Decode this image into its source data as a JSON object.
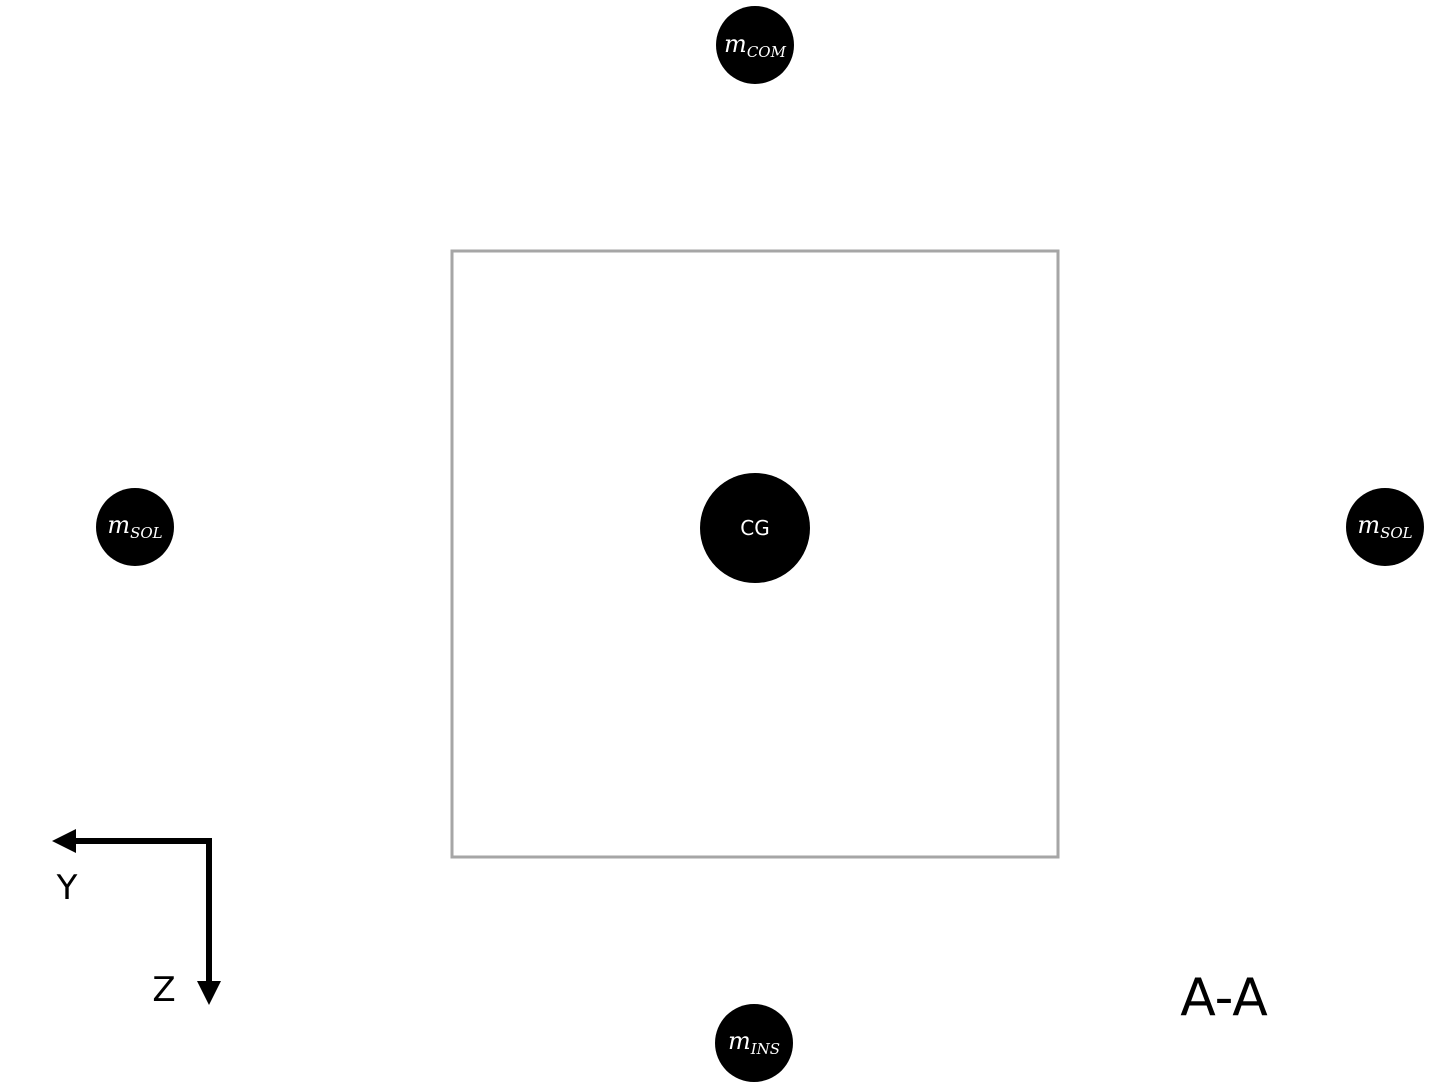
{
  "diagram": {
    "section_label": "A-A",
    "center_of_gravity": {
      "label": "CG"
    },
    "masses": {
      "top": {
        "base": "m",
        "subscript": "COM"
      },
      "left": {
        "base": "m",
        "subscript": "SOL"
      },
      "right": {
        "base": "m",
        "subscript": "SOL"
      },
      "bottom": {
        "base": "m",
        "subscript": "INS"
      }
    },
    "axes": {
      "horizontal_label": "Y",
      "vertical_label": "Z"
    },
    "colors": {
      "mass_fill": "#000000",
      "label_text": "#ffffff",
      "body_outline": "#a6a6a6",
      "axis_stroke": "#000000"
    }
  }
}
